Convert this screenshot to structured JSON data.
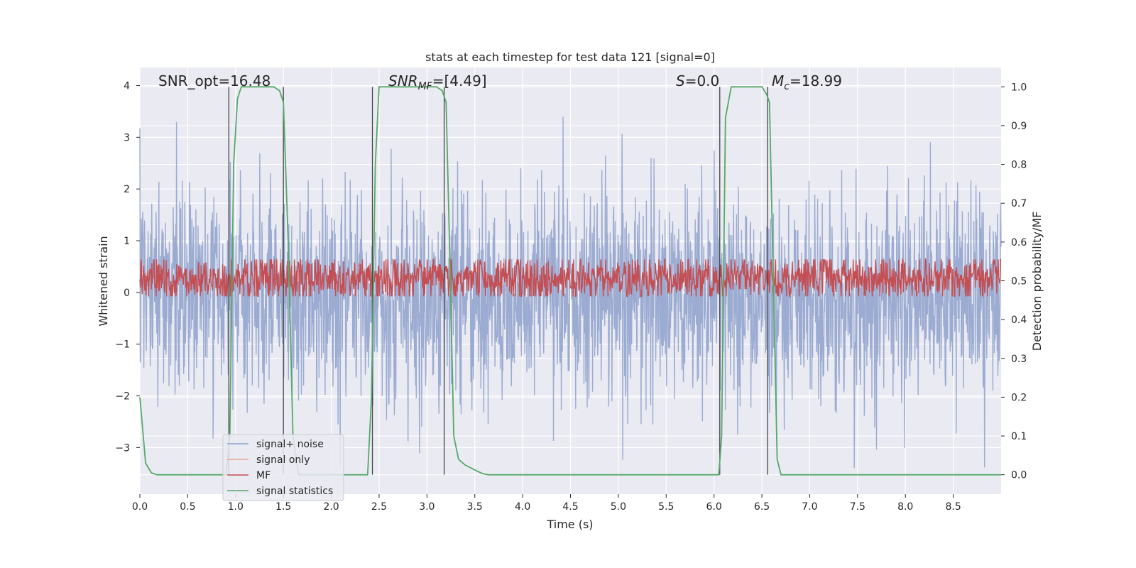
{
  "chart_data": {
    "type": "line",
    "title": "stats at each timestep for test data 121 [signal=0]",
    "xlabel": "Time (s)",
    "ylabel": "Whitened strain",
    "y2label": "Detection probability/MF",
    "xlim": [
      0.0,
      9.0
    ],
    "ylim": [
      -3.9,
      4.35
    ],
    "y2lim": [
      -0.05,
      1.05
    ],
    "x_ticks": [
      "0.0",
      "0.5",
      "1.0",
      "1.5",
      "2.0",
      "2.5",
      "3.0",
      "3.5",
      "4.0",
      "4.5",
      "5.0",
      "5.5",
      "6.0",
      "6.5",
      "7.0",
      "7.5",
      "8.0",
      "8.5"
    ],
    "y_ticks": [
      "−3",
      "−2",
      "−1",
      "0",
      "1",
      "2",
      "3",
      "4"
    ],
    "y_tick_values": [
      -3,
      -2,
      -1,
      0,
      1,
      2,
      3,
      4
    ],
    "y2_ticks": [
      "0.0",
      "0.1",
      "0.2",
      "0.3",
      "0.4",
      "0.5",
      "0.6",
      "0.7",
      "0.8",
      "0.9",
      "1.0"
    ],
    "y2_tick_values": [
      0.0,
      0.1,
      0.2,
      0.3,
      0.4,
      0.5,
      0.6,
      0.7,
      0.8,
      0.9,
      1.0
    ],
    "grid": true,
    "legend_position": "lower-left",
    "annotations": {
      "snr_opt": "SNR_opt=16.48",
      "snr_mf_sym": "SNR",
      "snr_mf_sub": "MF",
      "snr_mf_val": "=[4.49]",
      "s_sym": "S",
      "s_val": "=0.0",
      "mc_sym": "M",
      "mc_sub": "c",
      "mc_val": "=18.99"
    },
    "series": [
      {
        "name": "signal+ noise",
        "color": "#8da0cb",
        "noise": {
          "min": -3.6,
          "max": 3.8,
          "std": 1.0
        }
      },
      {
        "name": "signal only",
        "color": "#e8a788"
      },
      {
        "name": "MF",
        "color": "#c44e52",
        "noise": {
          "base": 0.0,
          "max": 0.88
        }
      },
      {
        "name": "signal statistics",
        "color": "#55a868",
        "x": [
          0.0,
          0.06,
          0.12,
          0.18,
          0.25,
          0.9,
          0.94,
          0.98,
          1.02,
          1.06,
          1.1,
          1.4,
          1.46,
          1.5,
          1.55,
          1.6,
          1.66,
          1.7,
          2.38,
          2.42,
          2.46,
          2.5,
          2.55,
          3.1,
          3.16,
          3.2,
          3.24,
          3.28,
          3.33,
          3.4,
          3.52,
          3.58,
          3.64,
          3.7,
          6.05,
          6.08,
          6.12,
          6.18,
          6.24,
          6.5,
          6.55,
          6.58,
          6.62,
          6.66,
          6.7,
          9.0
        ],
        "y": [
          0.2,
          0.03,
          0.005,
          0.0,
          0.0,
          0.0,
          0.1,
          0.8,
          0.97,
          1.0,
          1.0,
          1.0,
          0.99,
          0.96,
          0.6,
          0.1,
          0.0,
          0.0,
          0.0,
          0.2,
          0.8,
          1.0,
          1.0,
          1.0,
          0.99,
          0.96,
          0.55,
          0.1,
          0.04,
          0.025,
          0.01,
          0.003,
          0.0,
          0.0,
          0.0,
          0.1,
          0.92,
          1.0,
          1.0,
          1.0,
          0.98,
          0.96,
          0.5,
          0.04,
          0.0,
          0.0
        ]
      }
    ],
    "vertical_lines_x": [
      0.93,
      1.5,
      2.43,
      3.18,
      6.06,
      6.56
    ]
  }
}
